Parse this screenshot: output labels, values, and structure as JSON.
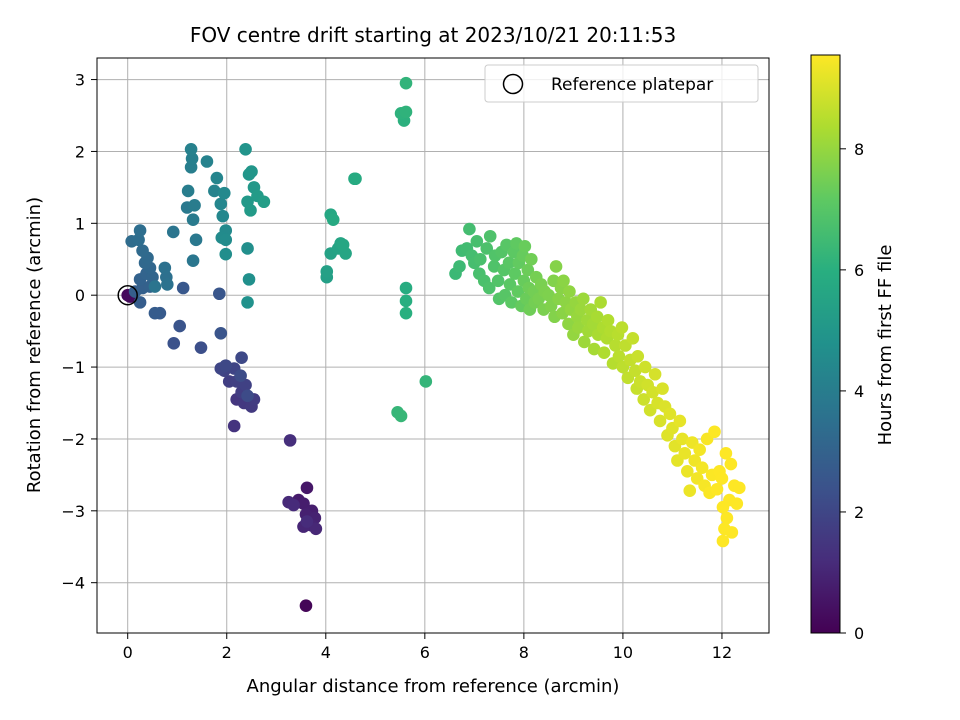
{
  "chart_data": {
    "type": "scatter",
    "title": "FOV centre drift starting at 2023/10/21 20:11:53",
    "xlabel": "Angular distance from reference (arcmin)",
    "ylabel": "Rotation from reference (arcmin)",
    "xlim": [
      -0.62,
      12.95
    ],
    "ylim": [
      -4.7,
      3.3
    ],
    "x_ticks": [
      0,
      2,
      4,
      6,
      8,
      10,
      12
    ],
    "y_ticks": [
      -4,
      -3,
      -2,
      -1,
      0,
      1,
      2,
      3
    ],
    "x_tick_labels": [
      "0",
      "2",
      "4",
      "6",
      "8",
      "10",
      "12"
    ],
    "y_tick_labels": [
      "−4",
      "−3",
      "−2",
      "−1",
      "0",
      "1",
      "2",
      "3"
    ],
    "grid": true,
    "legend_position": "top-right",
    "legend_label": "Reference platepar",
    "reference_point": {
      "x": 0,
      "y": 0
    },
    "colorbar": {
      "label": "Hours from first FF file",
      "range": [
        0,
        9.55
      ],
      "ticks": [
        0,
        2,
        4,
        6,
        8
      ],
      "tick_labels": [
        "0",
        "2",
        "4",
        "6",
        "8"
      ],
      "colormap": "viridis"
    },
    "points": [
      [
        3.6,
        -4.32,
        0.1
      ],
      [
        0.0,
        0.0,
        0.2
      ],
      [
        0.05,
        -0.02,
        0.25
      ],
      [
        3.62,
        -2.68,
        0.6
      ],
      [
        3.45,
        -2.85,
        0.7
      ],
      [
        3.55,
        -2.9,
        0.75
      ],
      [
        3.72,
        -3.0,
        0.8
      ],
      [
        3.6,
        -3.05,
        0.85
      ],
      [
        3.78,
        -3.1,
        0.9
      ],
      [
        3.7,
        -3.2,
        0.95
      ],
      [
        3.55,
        -3.22,
        1.0
      ],
      [
        3.8,
        -3.25,
        1.05
      ],
      [
        3.25,
        -2.88,
        1.1
      ],
      [
        3.35,
        -2.92,
        1.15
      ],
      [
        3.62,
        -3.15,
        1.18
      ],
      [
        3.28,
        -2.02,
        1.25
      ],
      [
        2.15,
        -1.82,
        1.4
      ],
      [
        2.2,
        -1.45,
        1.5
      ],
      [
        2.35,
        -1.5,
        1.55
      ],
      [
        2.5,
        -1.55,
        1.6
      ],
      [
        2.55,
        -1.45,
        1.65
      ],
      [
        2.3,
        -1.35,
        1.7
      ],
      [
        2.05,
        -1.2,
        1.75
      ],
      [
        2.2,
        -1.2,
        1.8
      ],
      [
        2.38,
        -1.25,
        1.85
      ],
      [
        1.95,
        -1.05,
        1.9
      ],
      [
        2.15,
        -1.02,
        1.95
      ],
      [
        1.88,
        -1.02,
        2.0
      ],
      [
        1.98,
        -0.98,
        2.05
      ],
      [
        2.3,
        -0.87,
        2.1
      ],
      [
        2.42,
        -1.4,
        2.15
      ],
      [
        2.28,
        -1.12,
        2.2
      ],
      [
        1.48,
        -0.73,
        2.3
      ],
      [
        0.93,
        -0.67,
        2.4
      ],
      [
        1.05,
        -0.43,
        2.45
      ],
      [
        1.88,
        -0.53,
        2.5
      ],
      [
        1.85,
        0.02,
        2.55
      ],
      [
        1.12,
        0.1,
        2.6
      ],
      [
        0.65,
        -0.25,
        2.7
      ],
      [
        0.55,
        -0.25,
        2.75
      ],
      [
        0.25,
        -0.1,
        2.8
      ],
      [
        0.15,
        0.05,
        2.85
      ],
      [
        0.3,
        0.1,
        2.9
      ],
      [
        0.45,
        0.12,
        2.95
      ],
      [
        0.25,
        0.22,
        3.0
      ],
      [
        0.38,
        0.3,
        3.05
      ],
      [
        0.5,
        0.25,
        3.1
      ],
      [
        0.45,
        0.38,
        3.15
      ],
      [
        0.35,
        0.45,
        3.2
      ],
      [
        0.4,
        0.52,
        3.25
      ],
      [
        0.3,
        0.62,
        3.3
      ],
      [
        0.08,
        0.75,
        3.35
      ],
      [
        0.22,
        0.77,
        3.4
      ],
      [
        0.25,
        0.9,
        3.45
      ],
      [
        0.78,
        0.25,
        3.5
      ],
      [
        0.75,
        0.38,
        3.55
      ],
      [
        0.8,
        0.15,
        3.6
      ],
      [
        0.55,
        0.12,
        3.65
      ],
      [
        0.92,
        0.88,
        3.7
      ],
      [
        1.32,
        0.48,
        3.75
      ],
      [
        1.38,
        0.77,
        3.8
      ],
      [
        1.2,
        1.22,
        3.85
      ],
      [
        1.32,
        1.05,
        3.9
      ],
      [
        1.35,
        1.25,
        3.95
      ],
      [
        1.22,
        1.45,
        4.0
      ],
      [
        1.28,
        1.78,
        4.05
      ],
      [
        1.3,
        1.9,
        4.1
      ],
      [
        1.28,
        2.03,
        4.15
      ],
      [
        1.6,
        1.86,
        4.2
      ],
      [
        1.75,
        1.45,
        4.25
      ],
      [
        1.8,
        1.63,
        4.3
      ],
      [
        1.88,
        1.27,
        4.35
      ],
      [
        1.92,
        1.1,
        4.4
      ],
      [
        1.95,
        1.42,
        4.45
      ],
      [
        1.98,
        0.9,
        4.5
      ],
      [
        1.9,
        0.8,
        4.55
      ],
      [
        1.98,
        0.77,
        4.6
      ],
      [
        1.98,
        0.57,
        4.65
      ],
      [
        2.42,
        0.65,
        4.7
      ],
      [
        2.45,
        0.22,
        4.75
      ],
      [
        2.42,
        -0.1,
        4.8
      ],
      [
        2.38,
        2.03,
        4.9
      ],
      [
        2.45,
        1.68,
        4.95
      ],
      [
        2.5,
        1.72,
        5.0
      ],
      [
        2.55,
        1.5,
        5.05
      ],
      [
        2.42,
        1.3,
        5.1
      ],
      [
        2.48,
        1.18,
        5.15
      ],
      [
        2.62,
        1.38,
        5.2
      ],
      [
        2.75,
        1.3,
        5.25
      ],
      [
        4.02,
        0.25,
        5.35
      ],
      [
        4.02,
        0.33,
        5.4
      ],
      [
        4.1,
        0.58,
        5.45
      ],
      [
        4.25,
        0.65,
        5.5
      ],
      [
        4.3,
        0.72,
        5.55
      ],
      [
        4.4,
        0.58,
        5.6
      ],
      [
        4.35,
        0.7,
        5.65
      ],
      [
        4.1,
        1.12,
        5.7
      ],
      [
        4.15,
        1.05,
        5.75
      ],
      [
        4.58,
        1.62,
        5.8
      ],
      [
        4.6,
        1.62,
        5.82
      ],
      [
        5.62,
        0.1,
        5.9
      ],
      [
        5.62,
        -0.08,
        5.95
      ],
      [
        5.62,
        -0.25,
        6.0
      ],
      [
        5.58,
        2.43,
        6.05
      ],
      [
        5.52,
        2.53,
        6.1
      ],
      [
        5.62,
        2.55,
        6.15
      ],
      [
        5.62,
        2.95,
        6.2
      ],
      [
        6.02,
        -1.2,
        6.25
      ],
      [
        5.45,
        -1.63,
        6.3
      ],
      [
        5.52,
        -1.68,
        6.32
      ],
      [
        6.62,
        0.3,
        6.4
      ],
      [
        6.7,
        0.4,
        6.45
      ],
      [
        6.75,
        0.62,
        6.5
      ],
      [
        6.85,
        0.65,
        6.55
      ],
      [
        6.9,
        0.92,
        6.6
      ],
      [
        6.95,
        0.55,
        6.62
      ],
      [
        7.0,
        0.45,
        6.65
      ],
      [
        7.05,
        0.75,
        6.68
      ],
      [
        7.1,
        0.3,
        6.7
      ],
      [
        7.12,
        0.5,
        6.72
      ],
      [
        7.2,
        0.2,
        6.75
      ],
      [
        7.25,
        0.65,
        6.78
      ],
      [
        7.3,
        0.1,
        6.8
      ],
      [
        7.32,
        0.82,
        6.82
      ],
      [
        7.4,
        0.4,
        6.85
      ],
      [
        7.42,
        0.55,
        6.88
      ],
      [
        7.48,
        0.2,
        6.9
      ],
      [
        7.5,
        -0.05,
        6.92
      ],
      [
        7.55,
        0.6,
        6.95
      ],
      [
        7.6,
        0.35,
        6.98
      ],
      [
        7.62,
        0.0,
        7.0
      ],
      [
        7.65,
        0.7,
        7.02
      ],
      [
        7.7,
        0.45,
        7.05
      ],
      [
        7.72,
        0.15,
        7.08
      ],
      [
        7.75,
        -0.1,
        7.1
      ],
      [
        7.8,
        0.6,
        7.12
      ],
      [
        7.82,
        0.3,
        7.15
      ],
      [
        7.85,
        0.72,
        7.18
      ],
      [
        7.88,
        0.05,
        7.2
      ],
      [
        7.9,
        0.45,
        7.22
      ],
      [
        7.95,
        -0.15,
        7.25
      ],
      [
        7.98,
        0.55,
        7.28
      ],
      [
        8.0,
        0.2,
        7.3
      ],
      [
        8.02,
        0.68,
        7.32
      ],
      [
        8.05,
        -0.05,
        7.35
      ],
      [
        8.08,
        0.35,
        7.38
      ],
      [
        8.1,
        0.1,
        7.4
      ],
      [
        8.12,
        -0.2,
        7.42
      ],
      [
        8.15,
        0.5,
        7.45
      ],
      [
        8.2,
        0.05,
        7.48
      ],
      [
        8.22,
        -0.1,
        7.5
      ],
      [
        8.25,
        0.25,
        7.52
      ],
      [
        8.3,
        -0.05,
        7.55
      ],
      [
        8.35,
        0.15,
        7.58
      ],
      [
        8.4,
        -0.2,
        7.6
      ],
      [
        8.42,
        0.05,
        7.62
      ],
      [
        8.5,
        0.0,
        7.65
      ],
      [
        8.55,
        -0.15,
        7.68
      ],
      [
        8.6,
        0.2,
        7.7
      ],
      [
        8.62,
        -0.3,
        7.72
      ],
      [
        8.65,
        0.4,
        7.75
      ],
      [
        8.7,
        -0.05,
        7.78
      ],
      [
        8.75,
        0.1,
        7.8
      ],
      [
        8.78,
        -0.25,
        7.82
      ],
      [
        8.8,
        0.2,
        7.85
      ],
      [
        8.85,
        -0.1,
        7.88
      ],
      [
        8.9,
        -0.4,
        7.9
      ],
      [
        8.92,
        0.05,
        7.92
      ],
      [
        8.95,
        -0.2,
        7.95
      ],
      [
        9.0,
        -0.55,
        7.98
      ],
      [
        9.05,
        -0.1,
        8.0
      ],
      [
        9.08,
        -0.3,
        8.02
      ],
      [
        9.1,
        -0.45,
        8.05
      ],
      [
        9.15,
        -0.2,
        8.08
      ],
      [
        9.2,
        -0.05,
        8.1
      ],
      [
        9.22,
        -0.65,
        8.12
      ],
      [
        9.28,
        -0.35,
        8.15
      ],
      [
        9.3,
        -0.5,
        8.18
      ],
      [
        9.35,
        -0.2,
        8.2
      ],
      [
        9.4,
        -0.4,
        8.22
      ],
      [
        9.42,
        -0.75,
        8.25
      ],
      [
        9.48,
        -0.3,
        8.28
      ],
      [
        9.5,
        -0.55,
        8.3
      ],
      [
        9.55,
        -0.1,
        8.32
      ],
      [
        9.6,
        -0.45,
        8.35
      ],
      [
        9.62,
        -0.8,
        8.38
      ],
      [
        9.68,
        -0.6,
        8.4
      ],
      [
        9.7,
        -0.35,
        8.42
      ],
      [
        9.75,
        -0.5,
        8.45
      ],
      [
        9.8,
        -0.95,
        8.48
      ],
      [
        9.85,
        -0.7,
        8.5
      ],
      [
        9.9,
        -0.55,
        8.52
      ],
      [
        9.92,
        -0.85,
        8.55
      ],
      [
        9.98,
        -0.45,
        8.58
      ],
      [
        10.0,
        -1.0,
        8.6
      ],
      [
        10.05,
        -0.7,
        8.62
      ],
      [
        10.1,
        -1.15,
        8.65
      ],
      [
        10.15,
        -0.9,
        8.68
      ],
      [
        10.2,
        -0.6,
        8.7
      ],
      [
        10.25,
        -1.05,
        8.72
      ],
      [
        10.28,
        -1.3,
        8.75
      ],
      [
        10.3,
        -0.85,
        8.78
      ],
      [
        10.35,
        -1.2,
        8.8
      ],
      [
        10.42,
        -1.45,
        8.82
      ],
      [
        10.45,
        -1.0,
        8.85
      ],
      [
        10.5,
        -1.25,
        8.88
      ],
      [
        10.55,
        -1.6,
        8.9
      ],
      [
        10.6,
        -1.35,
        8.92
      ],
      [
        10.65,
        -1.1,
        8.95
      ],
      [
        10.7,
        -1.5,
        8.98
      ],
      [
        10.75,
        -1.75,
        9.0
      ],
      [
        10.8,
        -1.3,
        9.02
      ],
      [
        10.85,
        -1.55,
        9.05
      ],
      [
        10.9,
        -1.95,
        9.08
      ],
      [
        10.95,
        -1.65,
        9.1
      ],
      [
        11.0,
        -1.85,
        9.12
      ],
      [
        11.05,
        -2.1,
        9.15
      ],
      [
        11.1,
        -2.3,
        9.18
      ],
      [
        11.15,
        -1.75,
        9.2
      ],
      [
        11.2,
        -2.0,
        9.22
      ],
      [
        11.25,
        -2.2,
        9.25
      ],
      [
        11.3,
        -2.45,
        9.28
      ],
      [
        11.35,
        -2.72,
        9.3
      ],
      [
        11.4,
        -2.05,
        9.32
      ],
      [
        11.45,
        -2.3,
        9.35
      ],
      [
        11.5,
        -2.55,
        9.38
      ],
      [
        11.55,
        -2.15,
        9.4
      ],
      [
        11.6,
        -2.4,
        9.42
      ],
      [
        11.65,
        -2.65,
        9.45
      ],
      [
        11.7,
        -2.0,
        9.48
      ],
      [
        11.75,
        -2.75,
        9.5
      ],
      [
        11.8,
        -2.5,
        9.52
      ],
      [
        11.85,
        -1.9,
        9.54
      ],
      [
        11.9,
        -2.7,
        9.55
      ],
      [
        11.95,
        -2.45,
        9.55
      ],
      [
        12.0,
        -2.55,
        9.55
      ],
      [
        12.02,
        -2.95,
        9.55
      ],
      [
        12.05,
        -3.25,
        9.55
      ],
      [
        12.02,
        -3.42,
        9.55
      ],
      [
        12.1,
        -3.1,
        9.55
      ],
      [
        12.15,
        -2.85,
        9.55
      ],
      [
        12.2,
        -3.3,
        9.55
      ],
      [
        12.25,
        -2.65,
        9.55
      ],
      [
        12.3,
        -2.9,
        9.55
      ],
      [
        12.35,
        -2.68,
        9.55
      ],
      [
        12.18,
        -2.35,
        9.55
      ],
      [
        12.08,
        -2.2,
        9.55
      ]
    ]
  }
}
